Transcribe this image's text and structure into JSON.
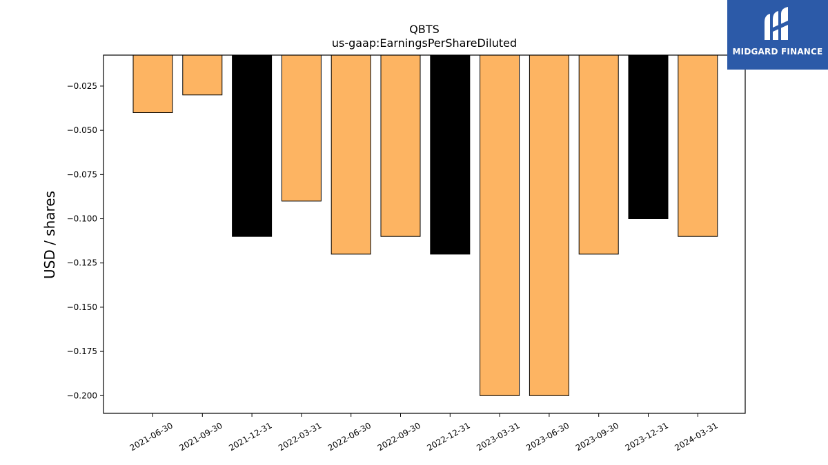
{
  "brand": {
    "name": "MIDGARD FINANCE",
    "icon": "midgard-logo-icon",
    "background": "#2c5aa8"
  },
  "chart_data": {
    "type": "bar",
    "title": "QBTS",
    "subtitle": "us-gaap:EarningsPerShareDiluted",
    "xlabel": "",
    "ylabel": "USD / shares",
    "categories": [
      "2021-06-30",
      "2021-09-30",
      "2021-12-31",
      "2022-03-31",
      "2022-06-30",
      "2022-09-30",
      "2022-12-31",
      "2023-03-31",
      "2023-06-30",
      "2023-09-30",
      "2023-12-31",
      "2024-03-31"
    ],
    "values": [
      -0.04,
      -0.03,
      -0.11,
      -0.09,
      -0.12,
      -0.11,
      -0.12,
      -0.2,
      -0.2,
      -0.12,
      -0.1,
      -0.11
    ],
    "bar_colors": [
      "#fdb462",
      "#fdb462",
      "#000000",
      "#fdb462",
      "#fdb462",
      "#fdb462",
      "#000000",
      "#fdb462",
      "#fdb462",
      "#fdb462",
      "#000000",
      "#fdb462"
    ],
    "ylim": [
      -0.21,
      -0.0075
    ],
    "yticks": [
      -0.025,
      -0.05,
      -0.075,
      -0.1,
      -0.125,
      -0.15,
      -0.175,
      -0.2
    ],
    "ytick_labels": [
      "−0.025",
      "−0.050",
      "−0.075",
      "−0.100",
      "−0.125",
      "−0.150",
      "−0.175",
      "−0.200"
    ],
    "grid": false,
    "legend": "none"
  }
}
